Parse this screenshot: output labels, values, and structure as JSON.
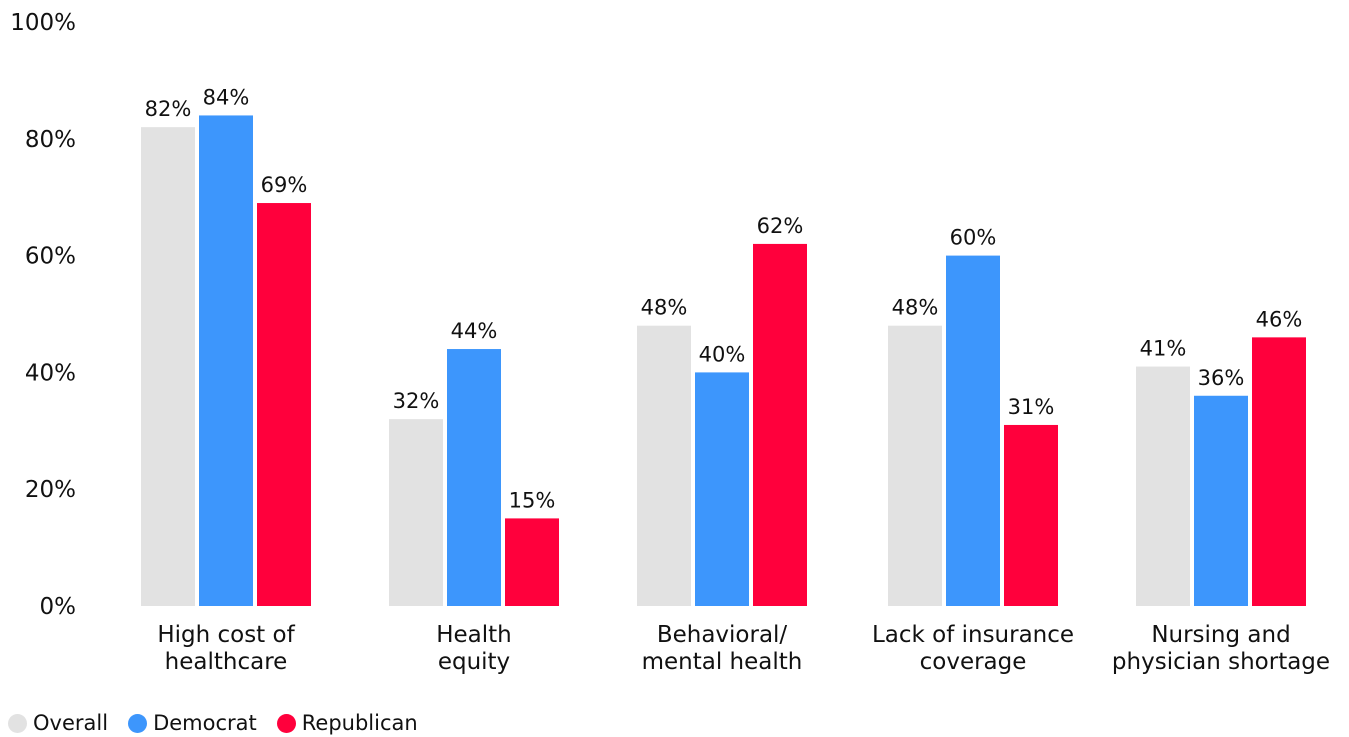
{
  "chart_data": {
    "type": "bar",
    "categories": [
      [
        "High cost of",
        "healthcare"
      ],
      [
        "Health",
        "equity"
      ],
      [
        "Behavioral/",
        "mental health"
      ],
      [
        "Lack of insurance",
        "coverage"
      ],
      [
        "Nursing and",
        "physician shortage"
      ]
    ],
    "series": [
      {
        "name": "Overall",
        "color": "#e2e2e2",
        "values": [
          82,
          32,
          48,
          48,
          41
        ]
      },
      {
        "name": "Democrat",
        "color": "#3d96fc",
        "values": [
          84,
          44,
          40,
          60,
          36
        ]
      },
      {
        "name": "Republican",
        "color": "#ff003c",
        "values": [
          69,
          15,
          62,
          31,
          46
        ]
      }
    ],
    "yticks": [
      "0%",
      "20%",
      "40%",
      "60%",
      "80%",
      "100%"
    ],
    "ytick_values": [
      0,
      20,
      40,
      60,
      80,
      100
    ],
    "ylim": [
      0,
      100
    ],
    "value_suffix": "%",
    "grid": false,
    "legend_position": "bottom-left"
  }
}
